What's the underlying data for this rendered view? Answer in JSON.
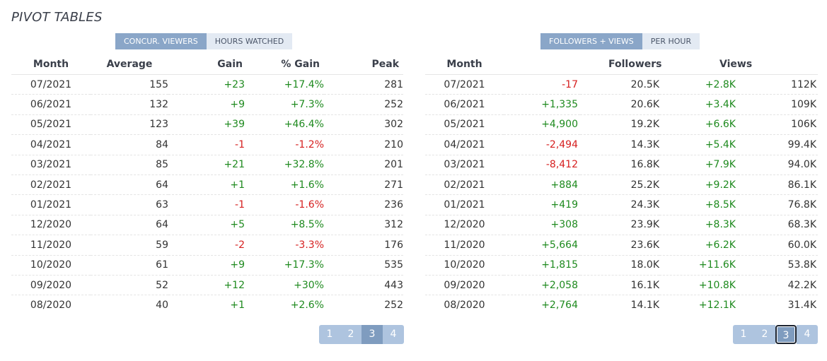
{
  "page": {
    "title": "PIVOT TABLES"
  },
  "left": {
    "toggles": [
      "CONCUR. VIEWERS",
      "HOURS WATCHED"
    ],
    "headers": [
      "Month",
      "Average",
      "Gain",
      "% Gain",
      "Peak"
    ],
    "rows": [
      [
        "07/2021",
        "155",
        "+23",
        "+17.4%",
        "281"
      ],
      [
        "06/2021",
        "132",
        "+9",
        "+7.3%",
        "252"
      ],
      [
        "05/2021",
        "123",
        "+39",
        "+46.4%",
        "302"
      ],
      [
        "04/2021",
        "84",
        "-1",
        "-1.2%",
        "210"
      ],
      [
        "03/2021",
        "85",
        "+21",
        "+32.8%",
        "201"
      ],
      [
        "02/2021",
        "64",
        "+1",
        "+1.6%",
        "271"
      ],
      [
        "01/2021",
        "63",
        "-1",
        "-1.6%",
        "236"
      ],
      [
        "12/2020",
        "64",
        "+5",
        "+8.5%",
        "312"
      ],
      [
        "11/2020",
        "59",
        "-2",
        "-3.3%",
        "176"
      ],
      [
        "10/2020",
        "61",
        "+9",
        "+17.3%",
        "535"
      ],
      [
        "09/2020",
        "52",
        "+12",
        "+30%",
        "443"
      ],
      [
        "08/2020",
        "40",
        "+1",
        "+2.6%",
        "252"
      ]
    ],
    "pages": [
      "1",
      "2",
      "3",
      "4"
    ]
  },
  "right": {
    "toggles": [
      "FOLLOWERS + VIEWS",
      "PER HOUR"
    ],
    "headers": [
      "Month",
      "Followers",
      "Views"
    ],
    "rows": [
      [
        "07/2021",
        "-17",
        "20.5K",
        "+2.8K",
        "112K"
      ],
      [
        "06/2021",
        "+1,335",
        "20.6K",
        "+3.4K",
        "109K"
      ],
      [
        "05/2021",
        "+4,900",
        "19.2K",
        "+6.6K",
        "106K"
      ],
      [
        "04/2021",
        "-2,494",
        "14.3K",
        "+5.4K",
        "99.4K"
      ],
      [
        "03/2021",
        "-8,412",
        "16.8K",
        "+7.9K",
        "94.0K"
      ],
      [
        "02/2021",
        "+884",
        "25.2K",
        "+9.2K",
        "86.1K"
      ],
      [
        "01/2021",
        "+419",
        "24.3K",
        "+8.5K",
        "76.8K"
      ],
      [
        "12/2020",
        "+308",
        "23.9K",
        "+8.3K",
        "68.3K"
      ],
      [
        "11/2020",
        "+5,664",
        "23.6K",
        "+6.2K",
        "60.0K"
      ],
      [
        "10/2020",
        "+1,815",
        "18.0K",
        "+11.6K",
        "53.8K"
      ],
      [
        "09/2020",
        "+2,058",
        "16.1K",
        "+10.8K",
        "42.2K"
      ],
      [
        "08/2020",
        "+2,764",
        "14.1K",
        "+12.1K",
        "31.4K"
      ]
    ],
    "pages": [
      "1",
      "2",
      "3",
      "4"
    ]
  },
  "colors": {
    "positive": "#1e8a1e",
    "negative": "#d61f1f",
    "accent": "#8aa6c8"
  }
}
